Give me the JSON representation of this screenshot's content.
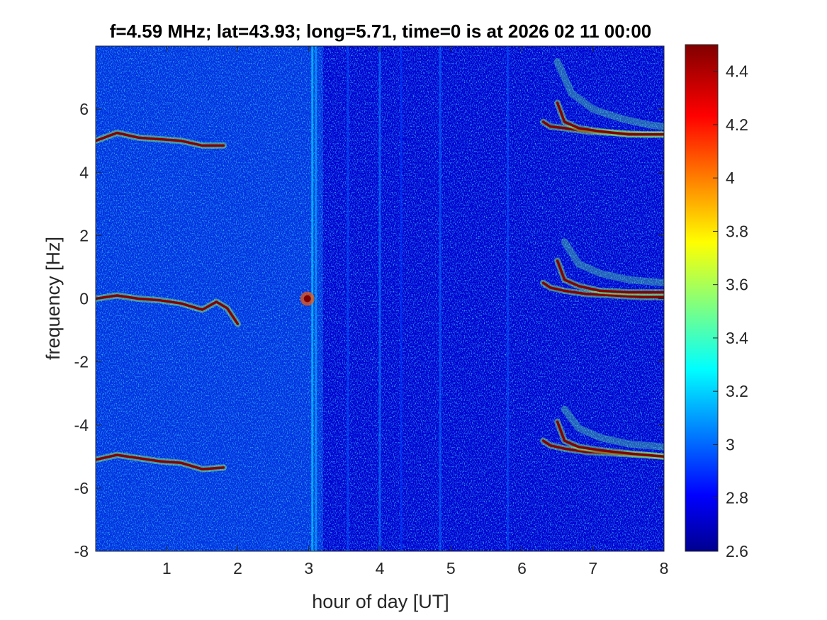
{
  "chart_data": {
    "type": "heatmap",
    "title": "f=4.59 MHz;  lat=43.93; long=5.71, time=0 is at 2026 02 11 00:00",
    "xlabel": "hour of day [UT]",
    "ylabel": "frequency [Hz]",
    "xlim": [
      0,
      8
    ],
    "ylim": [
      -8,
      8
    ],
    "x_ticks": [
      1,
      2,
      3,
      4,
      5,
      6,
      7,
      8
    ],
    "x_tick_labels": [
      "1",
      "2",
      "3",
      "4",
      "5",
      "6",
      "7",
      "8"
    ],
    "y_ticks": [
      -8,
      -6,
      -4,
      -2,
      0,
      2,
      4,
      6
    ],
    "y_tick_labels": [
      "-8",
      "-6",
      "-4",
      "-2",
      "0",
      "2",
      "4",
      "6"
    ],
    "colorbar": {
      "colormap": "jet",
      "clim": [
        2.6,
        4.5
      ],
      "ticks": [
        2.6,
        2.8,
        3,
        3.2,
        3.4,
        3.6,
        3.8,
        4,
        4.2,
        4.4
      ],
      "tick_labels": [
        "2.6",
        "2.8",
        "3",
        "3.2",
        "3.4",
        "3.6",
        "3.8",
        "4",
        "4.2",
        "4.4"
      ]
    },
    "background_level": 2.75,
    "bright_traces": [
      {
        "x": [
          0,
          0.3,
          0.6,
          0.9,
          1.2,
          1.5,
          1.8
        ],
        "y": [
          5.0,
          5.25,
          5.1,
          5.05,
          5.0,
          4.85,
          4.85
        ]
      },
      {
        "x": [
          0,
          0.3,
          0.6,
          0.9,
          1.2,
          1.5,
          1.7,
          1.85,
          2.0
        ],
        "y": [
          0.0,
          0.1,
          0.0,
          -0.05,
          -0.15,
          -0.35,
          -0.1,
          -0.3,
          -0.8
        ]
      },
      {
        "x": [
          0,
          0.3,
          0.6,
          0.9,
          1.2,
          1.5,
          1.8
        ],
        "y": [
          -5.1,
          -4.95,
          -5.05,
          -5.15,
          -5.2,
          -5.4,
          -5.35
        ]
      },
      {
        "x": [
          6.3,
          6.4,
          6.6,
          6.9,
          7.3,
          7.7,
          8.0
        ],
        "y": [
          5.6,
          5.45,
          5.4,
          5.3,
          5.25,
          5.2,
          5.2
        ]
      },
      {
        "x": [
          6.5,
          6.6,
          6.8,
          7.1,
          7.5,
          8.0
        ],
        "y": [
          6.2,
          5.6,
          5.4,
          5.3,
          5.2,
          5.2
        ]
      },
      {
        "x": [
          6.3,
          6.4,
          6.6,
          6.9,
          7.3,
          7.7,
          8.0
        ],
        "y": [
          0.5,
          0.35,
          0.25,
          0.15,
          0.1,
          0.05,
          0.05
        ]
      },
      {
        "x": [
          6.5,
          6.6,
          6.8,
          7.1,
          7.5,
          8.0
        ],
        "y": [
          1.2,
          0.6,
          0.4,
          0.25,
          0.2,
          0.2
        ]
      },
      {
        "x": [
          6.3,
          6.4,
          6.6,
          6.9,
          7.3,
          7.7,
          8.0
        ],
        "y": [
          -4.5,
          -4.65,
          -4.75,
          -4.85,
          -4.9,
          -4.95,
          -5.0
        ]
      },
      {
        "x": [
          6.5,
          6.6,
          6.8,
          7.1,
          7.5,
          8.0
        ],
        "y": [
          -3.9,
          -4.5,
          -4.7,
          -4.8,
          -4.9,
          -5.0
        ]
      }
    ],
    "faint_echo_traces": [
      {
        "x": [
          6.5,
          6.7,
          7.0,
          7.4,
          7.8,
          8.0
        ],
        "y": [
          7.5,
          6.5,
          6.0,
          5.7,
          5.5,
          5.45
        ]
      },
      {
        "x": [
          6.6,
          6.8,
          7.1,
          7.5,
          8.0
        ],
        "y": [
          1.8,
          1.1,
          0.8,
          0.6,
          0.5
        ]
      },
      {
        "x": [
          6.6,
          6.8,
          7.1,
          7.5,
          8.0
        ],
        "y": [
          -3.5,
          -4.1,
          -4.4,
          -4.6,
          -4.7
        ]
      }
    ],
    "spot": {
      "x": 2.98,
      "y": 0.0
    },
    "vertical_stripes": [
      {
        "x": 3.05,
        "level": 3.3
      },
      {
        "x": 3.1,
        "level": 3.2
      },
      {
        "x": 3.55,
        "level": 3.0
      },
      {
        "x": 4.0,
        "level": 3.1
      },
      {
        "x": 4.3,
        "level": 2.95
      },
      {
        "x": 4.85,
        "level": 3.05
      },
      {
        "x": 5.8,
        "level": 3.0
      }
    ],
    "noisy_band": {
      "x_range": [
        0,
        3.2
      ],
      "level": 3.1
    }
  }
}
